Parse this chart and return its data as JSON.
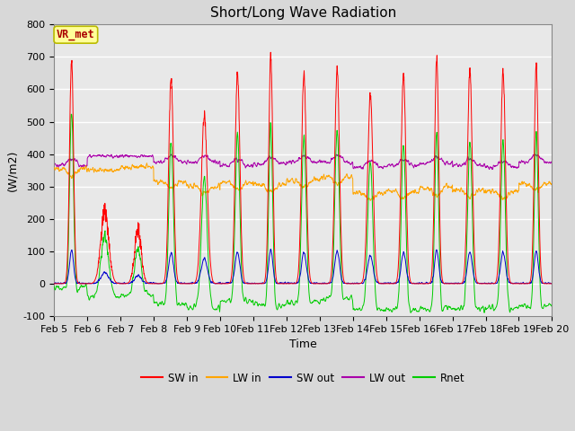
{
  "title": "Short/Long Wave Radiation",
  "xlabel": "Time",
  "ylabel": "(W/m2)",
  "ylim": [
    -100,
    800
  ],
  "yticks": [
    -100,
    0,
    100,
    200,
    300,
    400,
    500,
    600,
    700,
    800
  ],
  "date_labels": [
    "Feb 5",
    "Feb 6",
    "Feb 7",
    "Feb 8",
    "Feb 9",
    "Feb 10",
    "Feb 11",
    "Feb 12",
    "Feb 13",
    "Feb 14",
    "Feb 15",
    "Feb 16",
    "Feb 17",
    "Feb 18",
    "Feb 19",
    "Feb 20"
  ],
  "n_days": 15,
  "pts_per_day": 144,
  "colors": {
    "SW_in": "#ff0000",
    "LW_in": "#ffa500",
    "SW_out": "#0000cc",
    "LW_out": "#aa00aa",
    "Rnet": "#00cc00"
  },
  "legend_labels": [
    "SW in",
    "LW in",
    "SW out",
    "LW out",
    "Rnet"
  ],
  "annotation_text": "VR_met",
  "annotation_color": "#aa0000",
  "annotation_bg": "#ffff99",
  "annotation_border": "#bbbb00",
  "background_color": "#e8e8e8",
  "grid_color": "#ffffff",
  "title_fontsize": 11,
  "tick_fontsize": 8,
  "label_fontsize": 9
}
